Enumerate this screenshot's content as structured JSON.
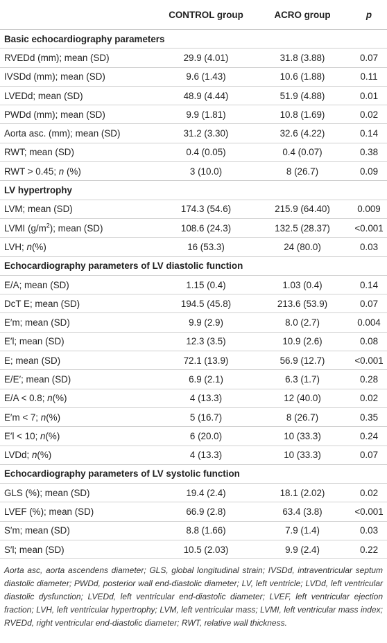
{
  "table": {
    "columns": [
      "CONTROL group",
      "ACRO group",
      "p"
    ],
    "sections": [
      {
        "title": "Basic echocardiography parameters",
        "rows": [
          {
            "label": "RVEDd (mm); mean (SD)",
            "cells": [
              "29.9 (4.01)",
              "31.8 (3.88)",
              "0.07"
            ]
          },
          {
            "label": "IVSDd (mm); mean (SD)",
            "cells": [
              "9.6 (1.43)",
              "10.6 (1.88)",
              "0.11"
            ]
          },
          {
            "label": "LVEDd; mean (SD)",
            "cells": [
              "48.9 (4.44)",
              "51.9 (4.88)",
              "0.01"
            ]
          },
          {
            "label": "PWDd (mm); mean (SD)",
            "cells": [
              "9.9 (1.81)",
              "10.8 (1.69)",
              "0.02"
            ]
          },
          {
            "label": "Aorta asc. (mm); mean (SD)",
            "cells": [
              "31.2 (3.30)",
              "32.6 (4.22)",
              "0.14"
            ]
          },
          {
            "label": "RWT; mean (SD)",
            "cells": [
              "0.4 (0.05)",
              "0.4 (0.07)",
              "0.38"
            ]
          },
          {
            "label": [
              {
                "text": "RWT > 0.45; "
              },
              {
                "text": "n",
                "style": "italic"
              },
              {
                "text": " (%)"
              }
            ],
            "cells": [
              "3 (10.0)",
              "8 (26.7)",
              "0.09"
            ]
          }
        ]
      },
      {
        "title": "LV hypertrophy",
        "rows": [
          {
            "label": "LVM; mean (SD)",
            "cells": [
              "174.3 (54.6)",
              "215.9 (64.40)",
              "0.009"
            ]
          },
          {
            "label": [
              {
                "text": "LVMI (g/m"
              },
              {
                "text": "2",
                "style": "sup"
              },
              {
                "text": "); mean (SD)"
              }
            ],
            "cells": [
              "108.6 (24.3)",
              "132.5 (28.37)",
              "<0.001"
            ]
          },
          {
            "label": [
              {
                "text": "LVH; "
              },
              {
                "text": "n",
                "style": "italic"
              },
              {
                "text": "(%)"
              }
            ],
            "cells": [
              "16 (53.3)",
              "24 (80.0)",
              "0.03"
            ]
          }
        ]
      },
      {
        "title": "Echocardiography parameters of LV diastolic function",
        "rows": [
          {
            "label": "E/A; mean (SD)",
            "cells": [
              "1.15 (0.4)",
              "1.03 (0.4)",
              "0.14"
            ]
          },
          {
            "label": "DcT E; mean (SD)",
            "cells": [
              "194.5 (45.8)",
              "213.6 (53.9)",
              "0.07"
            ]
          },
          {
            "label": "E′m; mean (SD)",
            "cells": [
              "9.9 (2.9)",
              "8.0 (2.7)",
              "0.004"
            ]
          },
          {
            "label": "E′l; mean (SD)",
            "cells": [
              "12.3 (3.5)",
              "10.9 (2.6)",
              "0.08"
            ]
          },
          {
            "label": "E; mean (SD)",
            "cells": [
              "72.1 (13.9)",
              "56.9 (12.7)",
              "<0.001"
            ]
          },
          {
            "label": "E/E′; mean (SD)",
            "cells": [
              "6.9 (2.1)",
              "6.3 (1.7)",
              "0.28"
            ]
          },
          {
            "label": [
              {
                "text": "E/A < 0.8; "
              },
              {
                "text": "n",
                "style": "italic"
              },
              {
                "text": "(%)"
              }
            ],
            "cells": [
              "4 (13.3)",
              "12 (40.0)",
              "0.02"
            ]
          },
          {
            "label": [
              {
                "text": "E′m < 7; "
              },
              {
                "text": "n",
                "style": "italic"
              },
              {
                "text": "(%)"
              }
            ],
            "cells": [
              "5 (16.7)",
              "8 (26.7)",
              "0.35"
            ]
          },
          {
            "label": [
              {
                "text": "E′l < 10; "
              },
              {
                "text": "n",
                "style": "italic"
              },
              {
                "text": "(%)"
              }
            ],
            "cells": [
              "6 (20.0)",
              "10 (33.3)",
              "0.24"
            ]
          },
          {
            "label": [
              {
                "text": "LVDd; "
              },
              {
                "text": "n",
                "style": "italic"
              },
              {
                "text": "(%)"
              }
            ],
            "cells": [
              "4 (13.3)",
              "10 (33.3)",
              "0.07"
            ]
          }
        ]
      },
      {
        "title": "Echocardiography parameters of LV systolic function",
        "rows": [
          {
            "label": "GLS (%); mean (SD)",
            "cells": [
              "19.4 (2.4)",
              "18.1 (2.02)",
              "0.02"
            ]
          },
          {
            "label": "LVEF (%); mean (SD)",
            "cells": [
              "66.9 (2.8)",
              "63.4 (3.8)",
              "<0.001"
            ]
          },
          {
            "label": "S′m; mean (SD)",
            "cells": [
              "8.8 (1.66)",
              "7.9 (1.4)",
              "0.03"
            ]
          },
          {
            "label": "S′l; mean (SD)",
            "cells": [
              "10.5 (2.03)",
              "9.9 (2.4)",
              "0.22"
            ]
          }
        ]
      }
    ],
    "footnote": "Aorta asc, aorta ascendens diameter; GLS, global longitudinal strain; IVSDd, intraventricular septum diastolic diameter; PWDd, posterior wall end-diastolic diameter; LV, left ventricle; LVDd, left ventricular diastolic dysfunction; LVEDd, left ventricular end-diastolic diameter; LVEF, left ventricular ejection fraction; LVH, left ventricular hypertrophy; LVM, left ventricular mass; LVMI, left ventricular mass index; RVEDd, right ventricular end-diastolic diameter; RWT, relative wall thickness."
  }
}
